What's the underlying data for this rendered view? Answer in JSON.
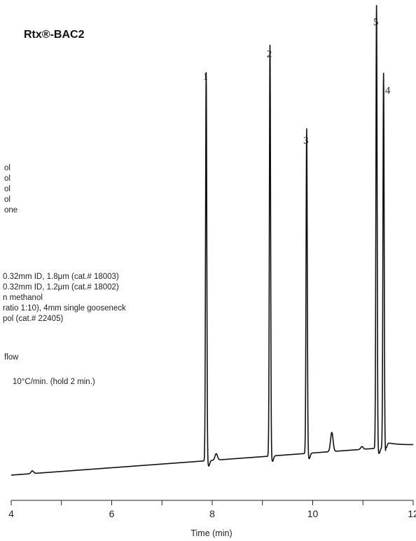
{
  "chart_data": {
    "type": "line",
    "title": "Rtx®-BAC2",
    "xlabel": "Time (min)",
    "ylabel": "",
    "xlim": [
      4,
      12
    ],
    "x_ticks": [
      4,
      6,
      8,
      10,
      12
    ],
    "x_tick_labels": [
      "4",
      "6",
      "8",
      "10",
      "12"
    ],
    "grid": false,
    "legend": "none",
    "info_lines": [
      "ol",
      "ol",
      "ol",
      "ol",
      "one",
      "0.32mm ID, 1.8μm (cat.# 18003)",
      "0.32mm ID, 1.2μm (cat.# 18002)",
      "n methanol",
      "ratio 1:10), 4mm single gooseneck",
      "pol (cat.# 22405)",
      "flow",
      "10°C/min. (hold 2 min.)"
    ],
    "peaks": [
      {
        "label": "1",
        "rt": 7.88,
        "height": 0.855
      },
      {
        "label": "2",
        "rt": 9.15,
        "height": 0.905
      },
      {
        "label": "3",
        "rt": 9.88,
        "height": 0.715
      },
      {
        "label": "5",
        "rt": 11.27,
        "height": 0.975
      },
      {
        "label": "4",
        "rt": 11.41,
        "height": 0.825
      }
    ],
    "minor_peaks": [
      {
        "rt": 8.08,
        "height": 0.014
      },
      {
        "rt": 10.38,
        "height": 0.042
      },
      {
        "rt": 4.42,
        "height": 0.006
      },
      {
        "rt": 10.98,
        "height": 0.006
      }
    ],
    "baseline": {
      "start": 0.0,
      "end": 0.065
    }
  }
}
